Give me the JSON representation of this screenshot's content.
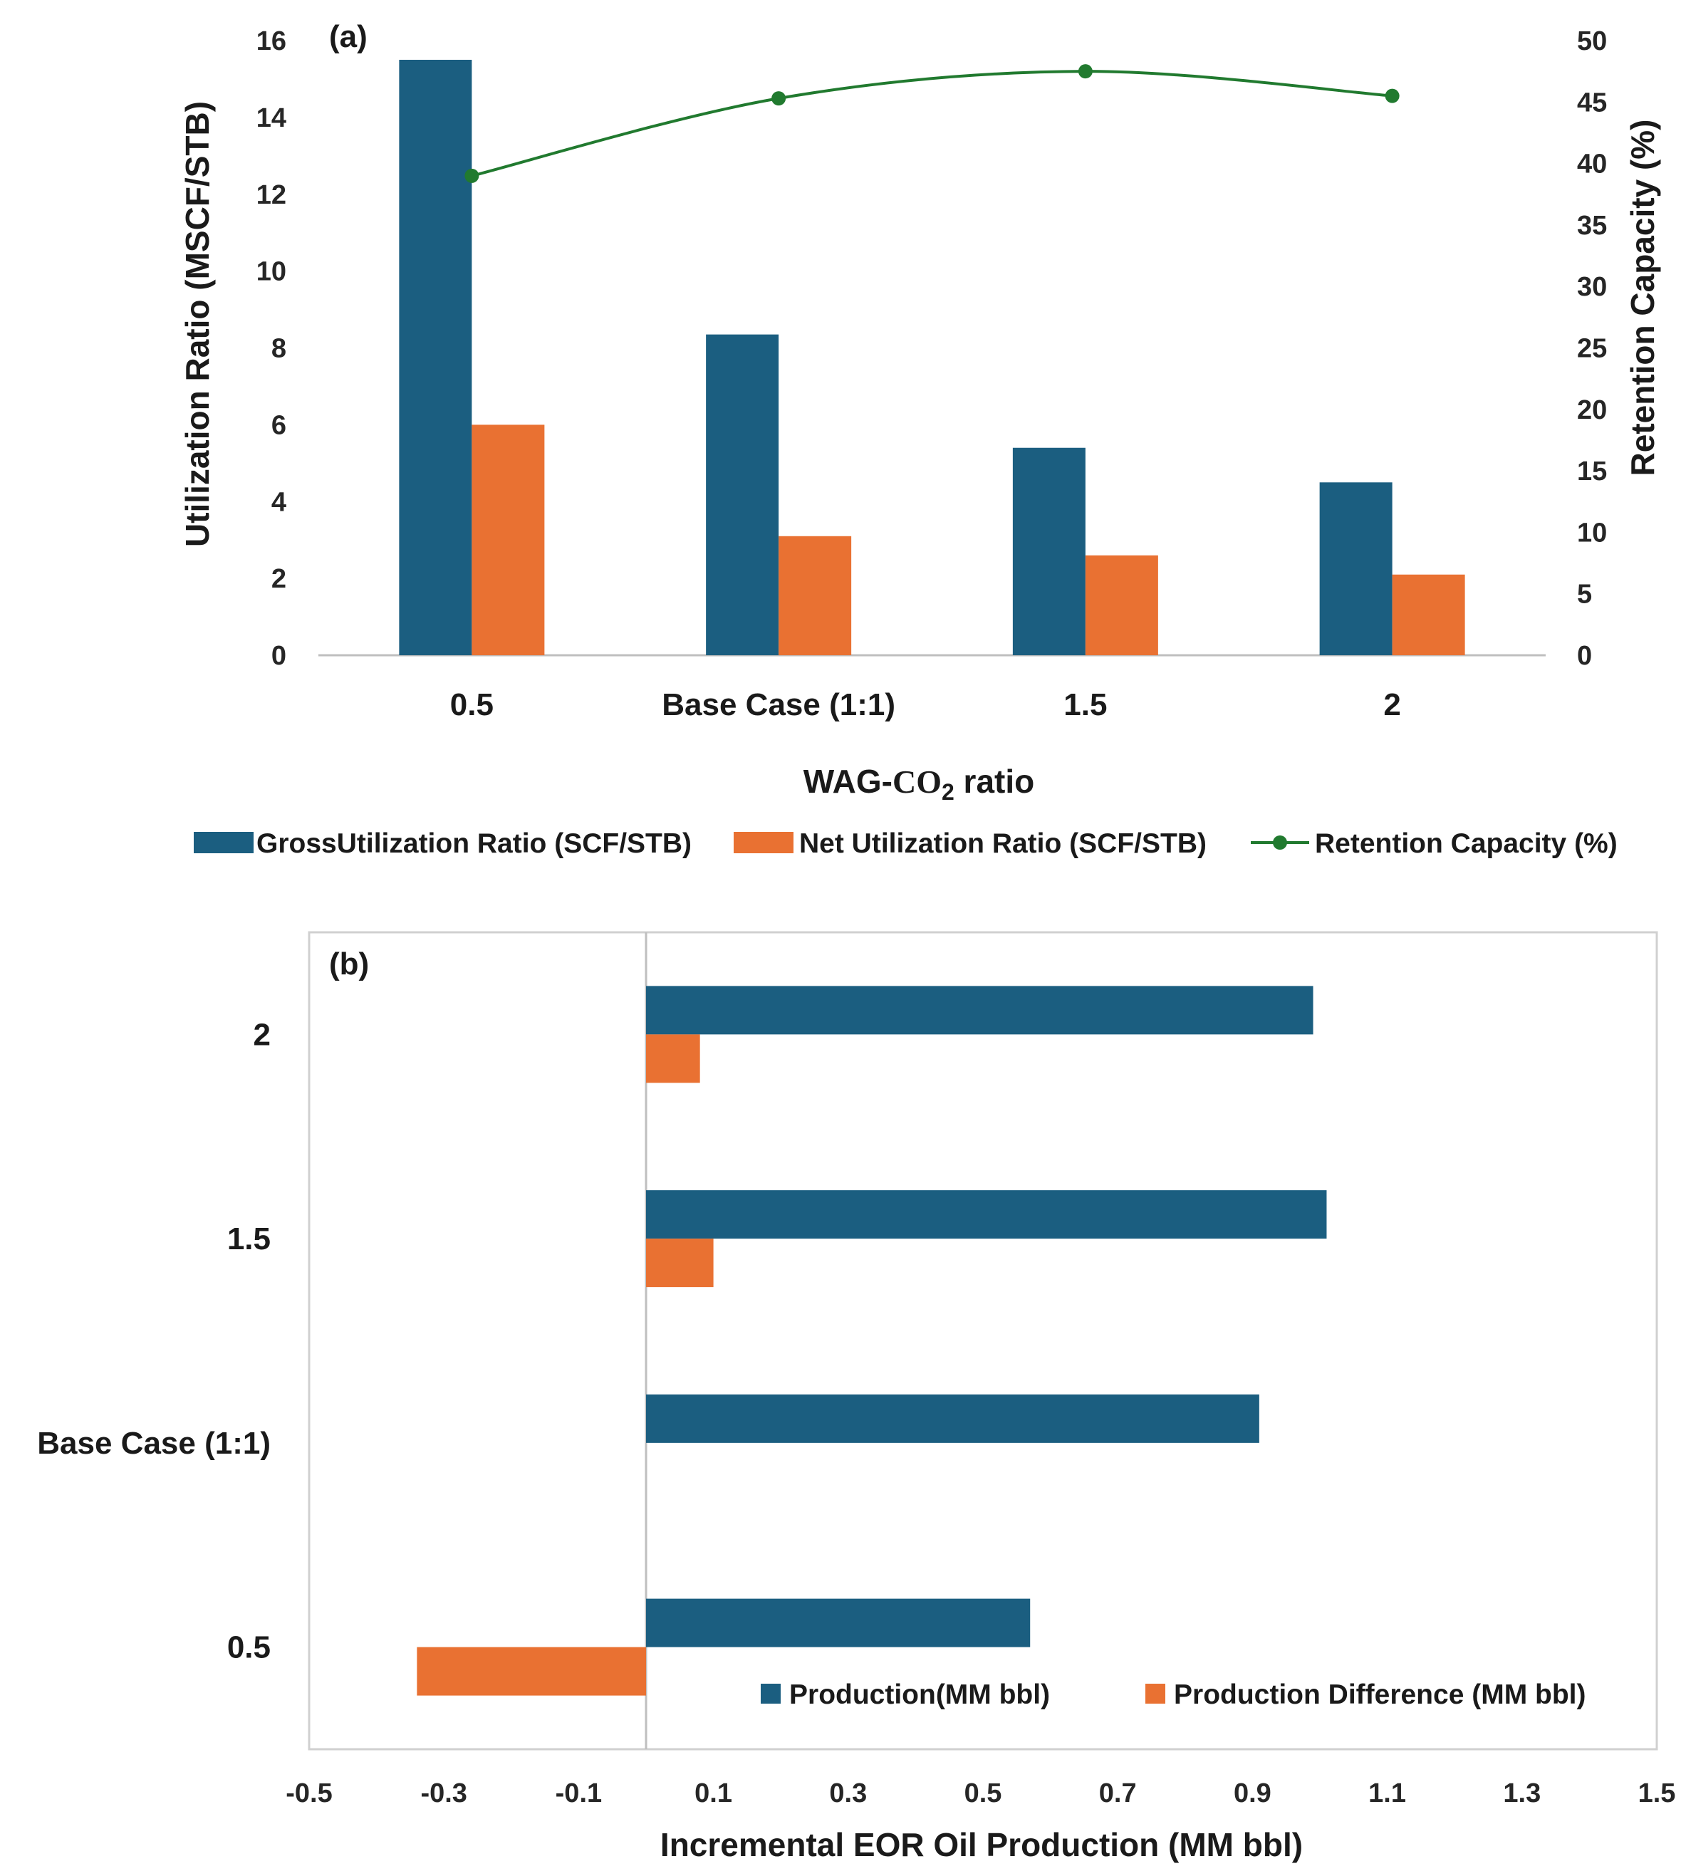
{
  "colors": {
    "gross": "#1b5e80",
    "net": "#e97132",
    "retention": "#217a2f",
    "axis": "#bfbfbf"
  },
  "chart_data": [
    {
      "panel": "(a)",
      "type": "bar",
      "categories": [
        "0.5",
        "Base Case (1:1)",
        "1.5",
        "2"
      ],
      "xlabel_prefix": "WAG-",
      "xlabel_chem": "CO",
      "xlabel_sub": "2",
      "xlabel_suffix": " ratio",
      "ylabel": "Utilization Ratio (MSCF/STB)",
      "y2label": "Retention Capacity (%)",
      "ylim": [
        0,
        16
      ],
      "yticks": [
        "0",
        "2",
        "4",
        "6",
        "8",
        "10",
        "12",
        "14",
        "16"
      ],
      "y2lim": [
        0,
        50
      ],
      "y2ticks": [
        "0",
        "5",
        "10",
        "15",
        "20",
        "25",
        "30",
        "35",
        "40",
        "45",
        "50"
      ],
      "series": [
        {
          "name": "GrossUtilization Ratio (SCF/STB)",
          "type": "bar",
          "axis": "left",
          "values": [
            15.5,
            8.35,
            5.4,
            4.5
          ]
        },
        {
          "name": "Net Utilization Ratio (SCF/STB)",
          "type": "bar",
          "axis": "left",
          "values": [
            6.0,
            3.1,
            2.6,
            2.1
          ]
        },
        {
          "name": "Retention Capacity (%)",
          "type": "line",
          "axis": "right",
          "values": [
            39,
            45.3,
            47.5,
            45.5
          ]
        }
      ],
      "legend_position": "bottom"
    },
    {
      "panel": "(b)",
      "type": "bar",
      "orientation": "horizontal",
      "categories": [
        "2",
        "1.5",
        "Base Case (1:1)",
        "0.5"
      ],
      "xlabel": "Incremental EOR Oil Production (MM bbl)",
      "xlim": [
        -0.5,
        1.5
      ],
      "xticks": [
        "-0.5",
        "-0.3",
        "-0.1",
        "0.1",
        "0.3",
        "0.5",
        "0.7",
        "0.9",
        "1.1",
        "1.3",
        "1.5"
      ],
      "series": [
        {
          "name": "Production(MM bbl)",
          "values": [
            0.99,
            1.01,
            0.91,
            0.57
          ]
        },
        {
          "name": "Production Difference (MM bbl)",
          "values": [
            0.08,
            0.1,
            0.0,
            -0.34
          ]
        }
      ],
      "legend_position": "bottom-right"
    }
  ]
}
